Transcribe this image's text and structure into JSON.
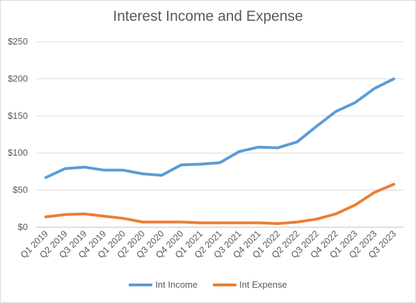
{
  "chart_data": {
    "type": "line",
    "title": "Interest Income and Expense",
    "xlabel": "",
    "ylabel": "",
    "ylim": [
      0,
      250
    ],
    "yticks": [
      "$0",
      "$50",
      "$100",
      "$150",
      "$200",
      "$250"
    ],
    "grid": true,
    "legend_position": "bottom",
    "categories": [
      "Q1 2019",
      "Q2 2019",
      "Q3 2019",
      "Q4 2019",
      "Q1 2020",
      "Q2 2020",
      "Q3 2020",
      "Q4 2020",
      "Q1 2021",
      "Q2 2021",
      "Q3 2021",
      "Q4 2021",
      "Q1 2022",
      "Q2 2022",
      "Q3 2022",
      "Q4 2022",
      "Q1 2023",
      "Q2 2023",
      "Q3 2023"
    ],
    "series": [
      {
        "name": "Int Income",
        "color": "#5b9bd5",
        "values": [
          67,
          79,
          81,
          77,
          77,
          72,
          70,
          84,
          85,
          87,
          102,
          108,
          107,
          115,
          136,
          156,
          168,
          187,
          200
        ]
      },
      {
        "name": "Int Expense",
        "color": "#ed7d31",
        "values": [
          14,
          17,
          18,
          15,
          12,
          7,
          7,
          7,
          6,
          6,
          6,
          6,
          5,
          7,
          11,
          18,
          30,
          47,
          58
        ]
      }
    ]
  }
}
